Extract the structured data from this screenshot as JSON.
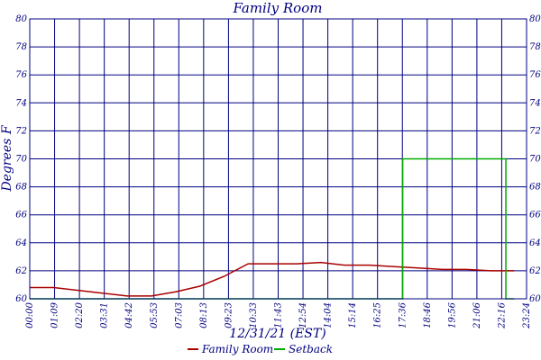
{
  "chart_data": {
    "type": "line",
    "title": "Family Room",
    "xlabel": "12/31/21 (EST)",
    "ylabel": "Degrees F",
    "ylim": [
      60,
      80
    ],
    "yticks": [
      "60",
      "62",
      "64",
      "66",
      "68",
      "70",
      "72",
      "74",
      "76",
      "78",
      "80"
    ],
    "xticks": [
      "00:00",
      "01:09",
      "02:20",
      "03:31",
      "04:42",
      "05:53",
      "07:03",
      "08:13",
      "09:23",
      "10:33",
      "11:43",
      "12:54",
      "14:04",
      "15:14",
      "16:25",
      "17:36",
      "18:46",
      "19:56",
      "21:06",
      "22:16",
      "23:24"
    ],
    "grid": true,
    "legend_position": "bottom-center",
    "series": [
      {
        "name": "Family Room",
        "color": "#aa0000",
        "points": [
          [
            "00:00",
            60.8
          ],
          [
            "01:09",
            60.8
          ],
          [
            "02:20",
            60.6
          ],
          [
            "03:31",
            60.4
          ],
          [
            "04:42",
            60.2
          ],
          [
            "05:53",
            60.2
          ],
          [
            "07:03",
            60.5
          ],
          [
            "08:13",
            60.9
          ],
          [
            "09:23",
            61.6
          ],
          [
            "10:33",
            62.5
          ],
          [
            "11:43",
            62.5
          ],
          [
            "12:54",
            62.5
          ],
          [
            "14:04",
            62.6
          ],
          [
            "15:14",
            62.4
          ],
          [
            "16:25",
            62.4
          ],
          [
            "17:36",
            62.3
          ],
          [
            "18:46",
            62.2
          ],
          [
            "19:56",
            62.1
          ],
          [
            "21:06",
            62.1
          ],
          [
            "22:16",
            62.0
          ],
          [
            "23:24",
            62.0
          ]
        ]
      },
      {
        "name": "Setback",
        "color": "#00aa00",
        "points": [
          [
            "00:00",
            60.0
          ],
          [
            "18:01",
            60.0
          ],
          [
            "18:01",
            70.0
          ],
          [
            "23:00",
            70.0
          ],
          [
            "23:00",
            60.0
          ],
          [
            "23:24",
            60.0
          ]
        ]
      }
    ]
  }
}
